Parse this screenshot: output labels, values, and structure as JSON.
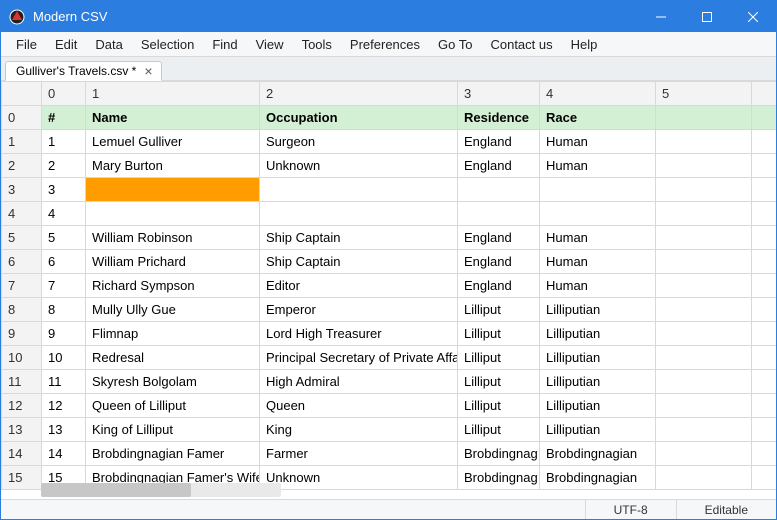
{
  "window": {
    "title": "Modern CSV",
    "titlebar_bg": "#2b7de0",
    "titlebar_fg": "#ffffff"
  },
  "menu": {
    "items": [
      "File",
      "Edit",
      "Data",
      "Selection",
      "Find",
      "View",
      "Tools",
      "Preferences",
      "Go To",
      "Contact us",
      "Help"
    ]
  },
  "tab": {
    "label": "Gulliver's Travels.csv *"
  },
  "grid": {
    "col_headers": [
      "0",
      "1",
      "2",
      "3",
      "4",
      "5"
    ],
    "row_headers": [
      "0",
      "1",
      "2",
      "3",
      "4",
      "5",
      "6",
      "7",
      "8",
      "9",
      "10",
      "11",
      "12",
      "13",
      "14",
      "15"
    ],
    "header_row_bg": "#d4f0d4",
    "active_cell_bg": "#ff9c00",
    "active_cell": {
      "row": 3,
      "col": 1
    },
    "rows": [
      {
        "cells": [
          "#",
          "Name",
          "Occupation",
          "Residence",
          "Race",
          ""
        ],
        "is_header": true
      },
      {
        "cells": [
          "1",
          "Lemuel Gulliver",
          "Surgeon",
          "England",
          "Human",
          ""
        ]
      },
      {
        "cells": [
          "2",
          "Mary Burton",
          "Unknown",
          "England",
          "Human",
          ""
        ]
      },
      {
        "cells": [
          "3",
          "",
          "",
          "",
          "",
          ""
        ]
      },
      {
        "cells": [
          "4",
          "",
          "",
          "",
          "",
          ""
        ]
      },
      {
        "cells": [
          "5",
          "William Robinson",
          "Ship Captain",
          "England",
          "Human",
          ""
        ]
      },
      {
        "cells": [
          "6",
          "William Prichard",
          "Ship Captain",
          "England",
          "Human",
          ""
        ]
      },
      {
        "cells": [
          "7",
          "Richard Sympson",
          "Editor",
          "England",
          "Human",
          ""
        ]
      },
      {
        "cells": [
          "8",
          "Mully Ully Gue",
          "Emperor",
          "Lilliput",
          "Lilliputian",
          ""
        ]
      },
      {
        "cells": [
          "9",
          "Flimnap",
          "Lord High Treasurer",
          "Lilliput",
          "Lilliputian",
          ""
        ]
      },
      {
        "cells": [
          "10",
          "Redresal",
          "Principal Secretary of Private Affairs",
          "Lilliput",
          "Lilliputian",
          ""
        ]
      },
      {
        "cells": [
          "11",
          "Skyresh Bolgolam",
          "High Admiral",
          "Lilliput",
          "Lilliputian",
          ""
        ]
      },
      {
        "cells": [
          "12",
          "Queen of Lilliput",
          "Queen",
          "Lilliput",
          "Lilliputian",
          ""
        ]
      },
      {
        "cells": [
          "13",
          "King of Lilliput",
          "King",
          "Lilliput",
          "Lilliputian",
          ""
        ]
      },
      {
        "cells": [
          "14",
          "Brobdingnagian Famer",
          "Farmer",
          "Brobdingnag",
          "Brobdingnagian",
          ""
        ]
      },
      {
        "cells": [
          "15",
          "Brobdingnagian Famer's Wife",
          "Unknown",
          "Brobdingnag",
          "Brobdingnagian",
          ""
        ]
      }
    ]
  },
  "status": {
    "encoding": "UTF-8",
    "mode": "Editable"
  }
}
